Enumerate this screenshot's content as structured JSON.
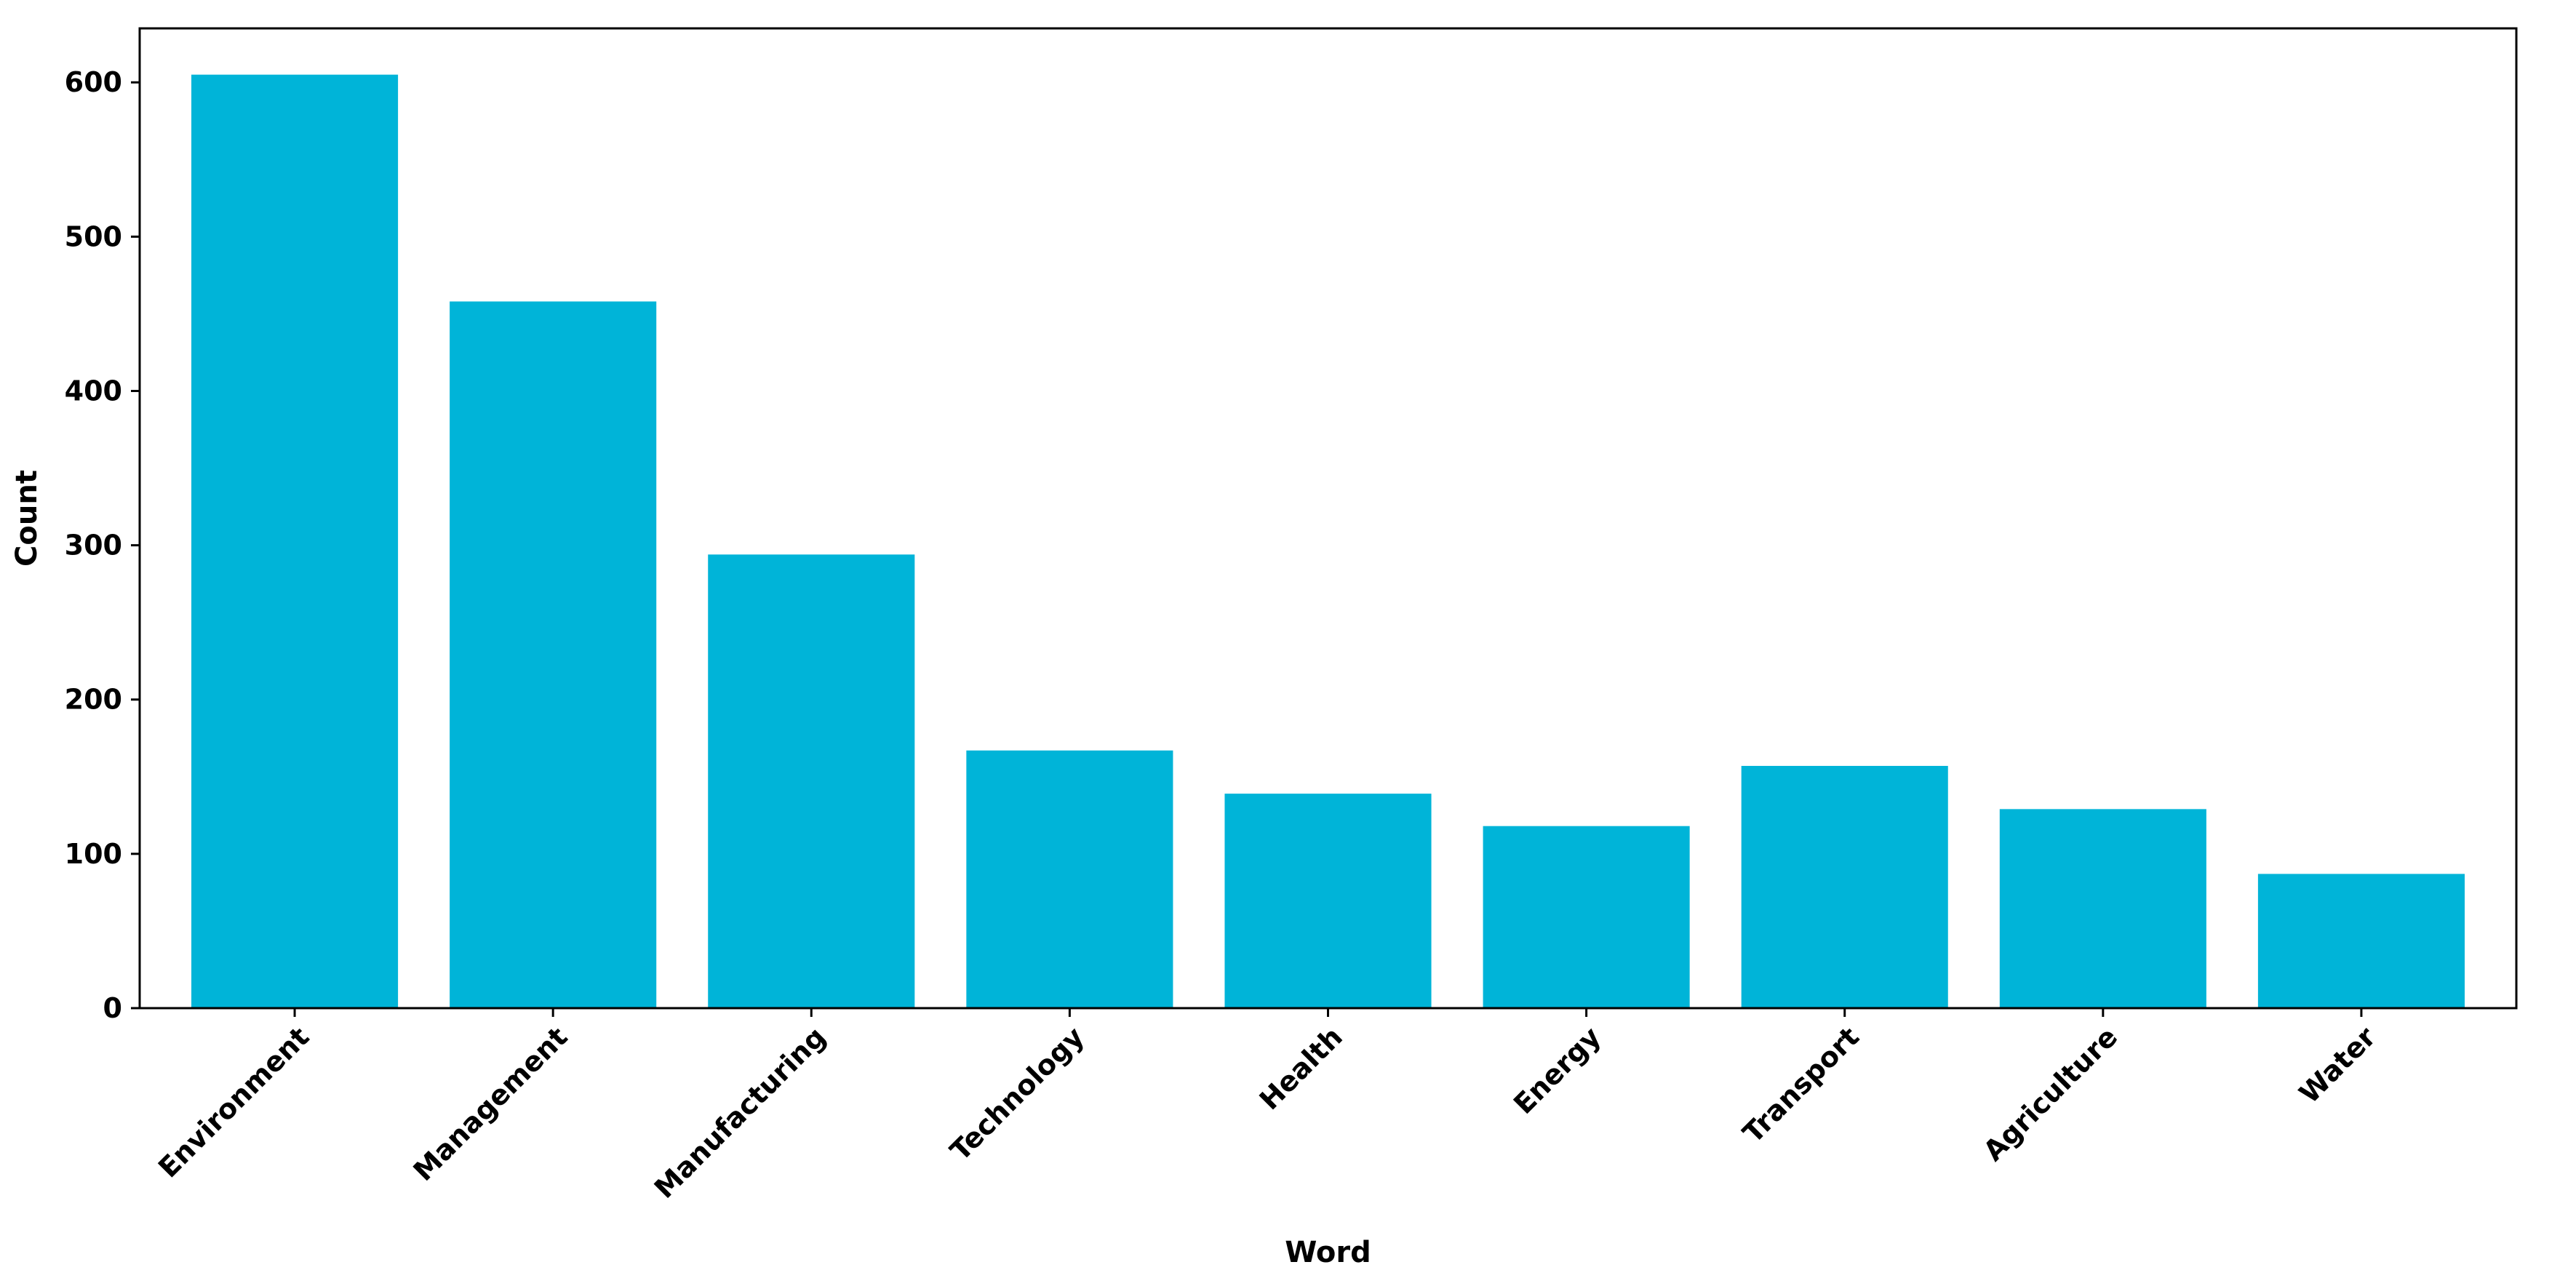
{
  "chart_data": {
    "type": "bar",
    "title": "",
    "xlabel": "Word",
    "ylabel": "Count",
    "categories": [
      "Environment",
      "Management",
      "Manufacturing",
      "Technology",
      "Health",
      "Energy",
      "Transport",
      "Agriculture",
      "Water"
    ],
    "values": [
      605,
      458,
      294,
      167,
      139,
      118,
      157,
      129,
      87
    ],
    "ylim": [
      0,
      635
    ],
    "yticks": [
      0,
      100,
      200,
      300,
      400,
      500,
      600
    ],
    "grid": false,
    "legend": "none",
    "bar_color": "#00B4D8"
  }
}
